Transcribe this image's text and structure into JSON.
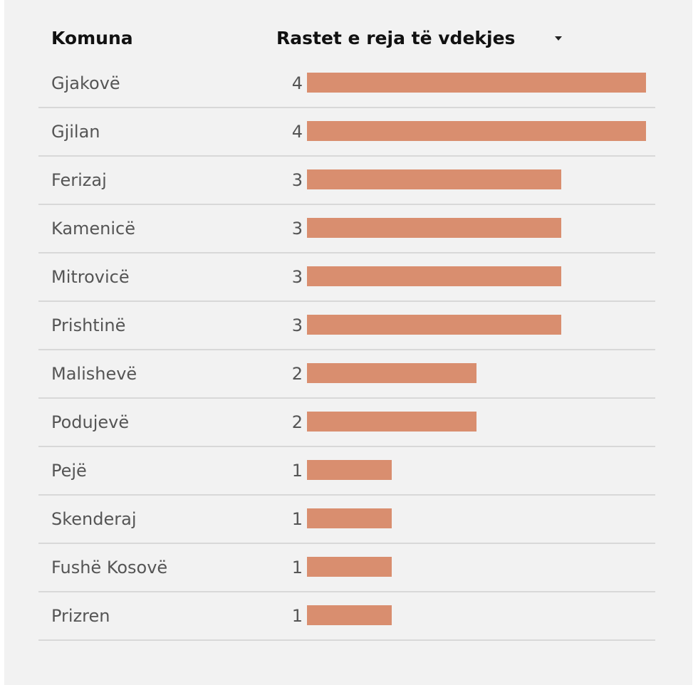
{
  "header": {
    "name_label": "Komuna",
    "value_label": "Rastet e reja të vdekjes"
  },
  "bar_color": "#d98e6f",
  "chart_data": {
    "type": "bar",
    "orientation": "horizontal",
    "categories": [
      "Gjakovë",
      "Gjilan",
      "Ferizaj",
      "Kamenicë",
      "Mitrovicë",
      "Prishtinë",
      "Malishevë",
      "Podujevë",
      "Pejë",
      "Skenderaj",
      "Fushë Kosovë",
      "Prizren"
    ],
    "values": [
      4,
      4,
      3,
      3,
      3,
      3,
      2,
      2,
      1,
      1,
      1,
      1
    ],
    "xlim": [
      0,
      4
    ],
    "sort": "descending",
    "grid": false
  }
}
